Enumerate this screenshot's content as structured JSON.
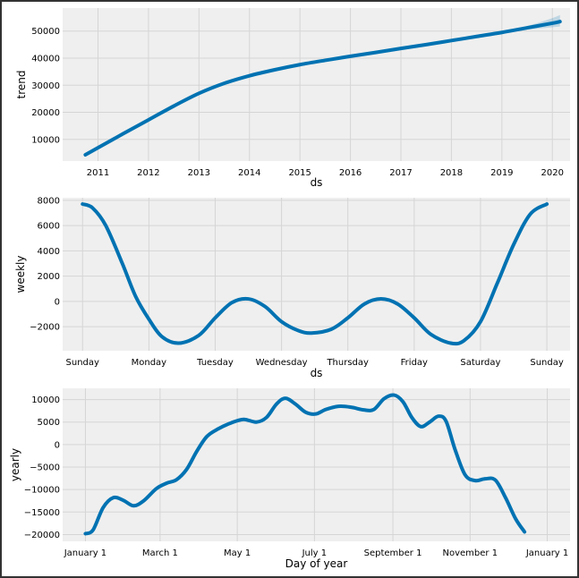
{
  "colors": {
    "line": "#0072B2",
    "band": "#0072B2",
    "plot_bg": "#EFEFEF",
    "grid": "#D5D5D5",
    "frame": "#333333"
  },
  "chart_data": [
    {
      "type": "line",
      "name": "trend",
      "ylabel": "trend",
      "xlabel": "ds",
      "x_tick_labels": [
        "2011",
        "2012",
        "2013",
        "2014",
        "2015",
        "2016",
        "2017",
        "2018",
        "2019",
        "2020"
      ],
      "y_tick_values": [
        10000,
        20000,
        30000,
        40000,
        50000
      ],
      "y_tick_labels": [
        "10000",
        "20000",
        "30000",
        "40000",
        "50000"
      ],
      "xlim": [
        2010.3,
        2020.35
      ],
      "ylim": [
        2000,
        58500
      ],
      "grid": true,
      "points": [
        {
          "x": 2010.75,
          "y": 4300
        },
        {
          "x": 2011.0,
          "y": 6900
        },
        {
          "x": 2011.5,
          "y": 12100
        },
        {
          "x": 2012.0,
          "y": 17200
        },
        {
          "x": 2012.5,
          "y": 22300
        },
        {
          "x": 2013.0,
          "y": 27000
        },
        {
          "x": 2013.5,
          "y": 30700
        },
        {
          "x": 2014.0,
          "y": 33500
        },
        {
          "x": 2014.5,
          "y": 35700
        },
        {
          "x": 2015.0,
          "y": 37600
        },
        {
          "x": 2015.5,
          "y": 39200
        },
        {
          "x": 2016.0,
          "y": 40700
        },
        {
          "x": 2016.5,
          "y": 42100
        },
        {
          "x": 2017.0,
          "y": 43600
        },
        {
          "x": 2017.5,
          "y": 45000
        },
        {
          "x": 2018.0,
          "y": 46500
        },
        {
          "x": 2018.5,
          "y": 48000
        },
        {
          "x": 2019.0,
          "y": 49500
        },
        {
          "x": 2019.5,
          "y": 51200
        },
        {
          "x": 2020.0,
          "y": 52900
        },
        {
          "x": 2020.15,
          "y": 53500
        }
      ],
      "uncertainty_band": [
        {
          "x": 2018.9,
          "lower": 49200,
          "upper": 49300
        },
        {
          "x": 2019.25,
          "lower": 50000,
          "upper": 50900
        },
        {
          "x": 2019.5,
          "lower": 50500,
          "upper": 51900
        },
        {
          "x": 2019.75,
          "lower": 51000,
          "upper": 53200
        },
        {
          "x": 2020.0,
          "lower": 51400,
          "upper": 54800
        },
        {
          "x": 2020.15,
          "lower": 51700,
          "upper": 55900
        }
      ]
    },
    {
      "type": "line",
      "name": "weekly",
      "ylabel": "weekly",
      "xlabel": "ds",
      "x_tick_labels": [
        "Sunday",
        "Monday",
        "Tuesday",
        "Wednesday",
        "Thursday",
        "Friday",
        "Saturday",
        "Sunday"
      ],
      "y_tick_values": [
        -2000,
        0,
        2000,
        4000,
        6000,
        8000
      ],
      "y_tick_labels": [
        "−2000",
        "0",
        "2000",
        "4000",
        "6000",
        "8000"
      ],
      "xlim": [
        -0.3,
        7.35
      ],
      "ylim": [
        -3900,
        8200
      ],
      "grid": true,
      "points": [
        {
          "x": 0.0,
          "y": 7700
        },
        {
          "x": 0.15,
          "y": 7400
        },
        {
          "x": 0.35,
          "y": 6000
        },
        {
          "x": 0.6,
          "y": 3000
        },
        {
          "x": 0.8,
          "y": 400
        },
        {
          "x": 1.0,
          "y": -1400
        },
        {
          "x": 1.2,
          "y": -2800
        },
        {
          "x": 1.45,
          "y": -3300
        },
        {
          "x": 1.75,
          "y": -2700
        },
        {
          "x": 2.0,
          "y": -1300
        },
        {
          "x": 2.25,
          "y": -100
        },
        {
          "x": 2.5,
          "y": 200
        },
        {
          "x": 2.75,
          "y": -400
        },
        {
          "x": 3.0,
          "y": -1600
        },
        {
          "x": 3.25,
          "y": -2300
        },
        {
          "x": 3.45,
          "y": -2500
        },
        {
          "x": 3.75,
          "y": -2200
        },
        {
          "x": 4.0,
          "y": -1300
        },
        {
          "x": 4.25,
          "y": -200
        },
        {
          "x": 4.5,
          "y": 200
        },
        {
          "x": 4.75,
          "y": -200
        },
        {
          "x": 5.0,
          "y": -1300
        },
        {
          "x": 5.25,
          "y": -2600
        },
        {
          "x": 5.55,
          "y": -3300
        },
        {
          "x": 5.75,
          "y": -3100
        },
        {
          "x": 6.0,
          "y": -1600
        },
        {
          "x": 6.25,
          "y": 1400
        },
        {
          "x": 6.5,
          "y": 4500
        },
        {
          "x": 6.75,
          "y": 6900
        },
        {
          "x": 7.0,
          "y": 7700
        }
      ]
    },
    {
      "type": "line",
      "name": "yearly",
      "ylabel": "yearly",
      "xlabel": "Day of year",
      "x_tick_labels": [
        "January 1",
        "March 1",
        "May 1",
        "July 1",
        "September 1",
        "November 1",
        "January 1"
      ],
      "y_tick_values": [
        -20000,
        -15000,
        -10000,
        -5000,
        0,
        5000,
        10000
      ],
      "y_tick_labels": [
        "−20000",
        "−15000",
        "−10000",
        "−5000",
        "0",
        "5000",
        "10000"
      ],
      "xlim": [
        -18,
        383
      ],
      "ylim": [
        -21500,
        12500
      ],
      "grid": true,
      "points": [
        {
          "x": 0,
          "y": -19800
        },
        {
          "x": 6,
          "y": -19000
        },
        {
          "x": 14,
          "y": -14000
        },
        {
          "x": 22,
          "y": -11800
        },
        {
          "x": 30,
          "y": -12400
        },
        {
          "x": 38,
          "y": -13600
        },
        {
          "x": 46,
          "y": -12500
        },
        {
          "x": 56,
          "y": -9800
        },
        {
          "x": 64,
          "y": -8600
        },
        {
          "x": 72,
          "y": -7800
        },
        {
          "x": 80,
          "y": -5500
        },
        {
          "x": 88,
          "y": -1500
        },
        {
          "x": 96,
          "y": 1800
        },
        {
          "x": 105,
          "y": 3500
        },
        {
          "x": 115,
          "y": 4800
        },
        {
          "x": 125,
          "y": 5600
        },
        {
          "x": 135,
          "y": 5000
        },
        {
          "x": 143,
          "y": 6000
        },
        {
          "x": 151,
          "y": 9000
        },
        {
          "x": 158,
          "y": 10300
        },
        {
          "x": 166,
          "y": 9000
        },
        {
          "x": 174,
          "y": 7200
        },
        {
          "x": 182,
          "y": 6800
        },
        {
          "x": 190,
          "y": 7800
        },
        {
          "x": 200,
          "y": 8500
        },
        {
          "x": 210,
          "y": 8300
        },
        {
          "x": 220,
          "y": 7700
        },
        {
          "x": 228,
          "y": 7800
        },
        {
          "x": 236,
          "y": 10200
        },
        {
          "x": 244,
          "y": 11000
        },
        {
          "x": 251,
          "y": 9500
        },
        {
          "x": 258,
          "y": 6000
        },
        {
          "x": 265,
          "y": 4000
        },
        {
          "x": 272,
          "y": 5000
        },
        {
          "x": 279,
          "y": 6300
        },
        {
          "x": 285,
          "y": 5200
        },
        {
          "x": 292,
          "y": -1000
        },
        {
          "x": 300,
          "y": -6700
        },
        {
          "x": 308,
          "y": -8000
        },
        {
          "x": 316,
          "y": -7600
        },
        {
          "x": 324,
          "y": -7900
        },
        {
          "x": 332,
          "y": -11800
        },
        {
          "x": 340,
          "y": -16500
        },
        {
          "x": 347,
          "y": -19400
        }
      ],
      "x_ticks_days": [
        0,
        59,
        120,
        181,
        243,
        304,
        365
      ]
    }
  ]
}
